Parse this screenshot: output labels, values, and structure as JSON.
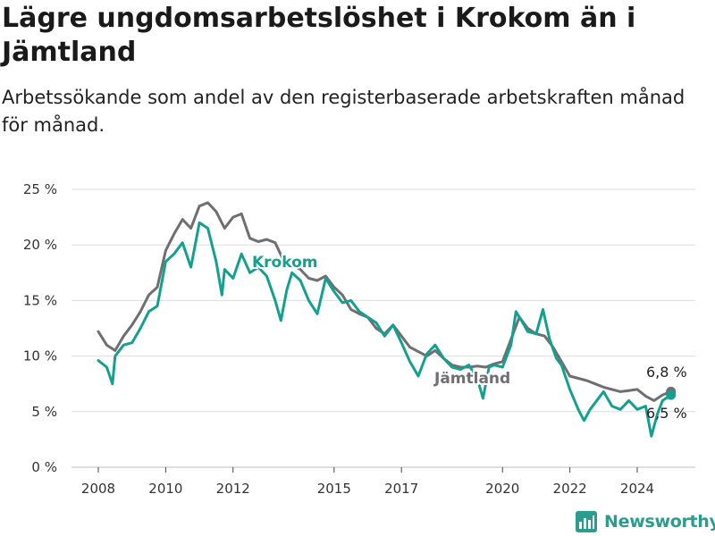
{
  "header": {
    "title": "Lägre ungdomsarbetslöshet i Krokom än i Jämtland",
    "subtitle": "Arbetssökande som andel av den registerbaserade arbetskraften månad för månad."
  },
  "brand": {
    "name": "Newsworthy",
    "color": "#2a9d8f"
  },
  "chart_data": {
    "type": "line",
    "title": "Lägre ungdomsarbetslöshet i Krokom än i Jämtland",
    "subtitle": "Arbetssökande som andel av den registerbaserade arbetskraften månad för månad.",
    "xlabel": "",
    "ylabel": "",
    "y_unit": "%",
    "ylim": [
      0,
      25
    ],
    "y_ticks": [
      0,
      5,
      10,
      15,
      20,
      25
    ],
    "y_tick_labels": [
      "0 %",
      "5 %",
      "10 %",
      "15 %",
      "20 %",
      "25 %"
    ],
    "x_range": [
      2007.0,
      2026.0
    ],
    "x_ticks": [
      2008,
      2010,
      2012,
      2015,
      2017,
      2020,
      2022,
      2024
    ],
    "x_tick_labels": [
      "2008",
      "2010",
      "2012",
      "2015",
      "2017",
      "2020",
      "2022",
      "2024"
    ],
    "grid": "horizontal",
    "legend": "direct labels on lines",
    "series": [
      {
        "name": "Jämtland",
        "color": "#6f6e72",
        "points": [
          [
            2008.0,
            12.2
          ],
          [
            2008.25,
            11.0
          ],
          [
            2008.5,
            10.5
          ],
          [
            2008.75,
            11.8
          ],
          [
            2009.0,
            12.8
          ],
          [
            2009.25,
            14.0
          ],
          [
            2009.5,
            15.5
          ],
          [
            2009.75,
            16.2
          ],
          [
            2010.0,
            19.5
          ],
          [
            2010.25,
            21.0
          ],
          [
            2010.5,
            22.3
          ],
          [
            2010.75,
            21.5
          ],
          [
            2011.0,
            23.5
          ],
          [
            2011.25,
            23.8
          ],
          [
            2011.5,
            23.0
          ],
          [
            2011.75,
            21.5
          ],
          [
            2012.0,
            22.5
          ],
          [
            2012.25,
            22.8
          ],
          [
            2012.5,
            20.6
          ],
          [
            2012.75,
            20.3
          ],
          [
            2013.0,
            20.5
          ],
          [
            2013.25,
            20.2
          ],
          [
            2013.5,
            18.6
          ],
          [
            2013.75,
            18.2
          ],
          [
            2014.0,
            17.8
          ],
          [
            2014.25,
            17.0
          ],
          [
            2014.5,
            16.8
          ],
          [
            2014.75,
            17.2
          ],
          [
            2015.0,
            16.2
          ],
          [
            2015.25,
            15.5
          ],
          [
            2015.5,
            14.2
          ],
          [
            2015.75,
            13.8
          ],
          [
            2016.0,
            13.5
          ],
          [
            2016.25,
            12.5
          ],
          [
            2016.5,
            12.0
          ],
          [
            2016.75,
            12.8
          ],
          [
            2017.0,
            11.8
          ],
          [
            2017.25,
            10.8
          ],
          [
            2017.5,
            10.4
          ],
          [
            2017.75,
            10.0
          ],
          [
            2018.0,
            10.5
          ],
          [
            2018.25,
            9.8
          ],
          [
            2018.5,
            9.2
          ],
          [
            2018.75,
            9.0
          ],
          [
            2019.0,
            9.0
          ],
          [
            2019.25,
            9.1
          ],
          [
            2019.5,
            9.0
          ],
          [
            2019.75,
            9.3
          ],
          [
            2020.0,
            9.5
          ],
          [
            2020.25,
            11.5
          ],
          [
            2020.5,
            13.5
          ],
          [
            2020.75,
            12.5
          ],
          [
            2021.0,
            12.0
          ],
          [
            2021.25,
            11.8
          ],
          [
            2021.5,
            10.8
          ],
          [
            2021.75,
            9.5
          ],
          [
            2022.0,
            8.2
          ],
          [
            2022.25,
            8.0
          ],
          [
            2022.5,
            7.8
          ],
          [
            2022.75,
            7.5
          ],
          [
            2023.0,
            7.2
          ],
          [
            2023.25,
            7.0
          ],
          [
            2023.5,
            6.8
          ],
          [
            2023.75,
            6.9
          ],
          [
            2024.0,
            7.0
          ],
          [
            2024.25,
            6.4
          ],
          [
            2024.5,
            6.0
          ],
          [
            2024.75,
            6.5
          ],
          [
            2025.0,
            6.8
          ]
        ]
      },
      {
        "name": "Krokom",
        "color": "#14a08f",
        "points": [
          [
            2008.0,
            9.6
          ],
          [
            2008.25,
            9.0
          ],
          [
            2008.42,
            7.5
          ],
          [
            2008.5,
            10.0
          ],
          [
            2008.75,
            11.0
          ],
          [
            2009.0,
            11.2
          ],
          [
            2009.25,
            12.5
          ],
          [
            2009.5,
            14.0
          ],
          [
            2009.75,
            14.5
          ],
          [
            2010.0,
            18.5
          ],
          [
            2010.25,
            19.2
          ],
          [
            2010.5,
            20.2
          ],
          [
            2010.75,
            18.0
          ],
          [
            2011.0,
            22.0
          ],
          [
            2011.25,
            21.5
          ],
          [
            2011.5,
            18.5
          ],
          [
            2011.67,
            15.5
          ],
          [
            2011.75,
            17.8
          ],
          [
            2012.0,
            17.0
          ],
          [
            2012.25,
            19.2
          ],
          [
            2012.5,
            17.5
          ],
          [
            2012.75,
            18.0
          ],
          [
            2013.0,
            17.2
          ],
          [
            2013.25,
            15.0
          ],
          [
            2013.42,
            13.2
          ],
          [
            2013.6,
            16.0
          ],
          [
            2013.75,
            17.5
          ],
          [
            2014.0,
            16.8
          ],
          [
            2014.25,
            15.0
          ],
          [
            2014.5,
            13.8
          ],
          [
            2014.75,
            17.0
          ],
          [
            2015.0,
            15.8
          ],
          [
            2015.25,
            14.8
          ],
          [
            2015.5,
            15.0
          ],
          [
            2015.75,
            14.0
          ],
          [
            2016.0,
            13.5
          ],
          [
            2016.25,
            13.0
          ],
          [
            2016.5,
            11.8
          ],
          [
            2016.75,
            12.8
          ],
          [
            2017.0,
            11.2
          ],
          [
            2017.25,
            9.5
          ],
          [
            2017.5,
            8.2
          ],
          [
            2017.75,
            10.2
          ],
          [
            2018.0,
            11.0
          ],
          [
            2018.25,
            9.8
          ],
          [
            2018.5,
            9.0
          ],
          [
            2018.75,
            8.8
          ],
          [
            2019.0,
            9.2
          ],
          [
            2019.25,
            8.0
          ],
          [
            2019.42,
            6.2
          ],
          [
            2019.6,
            9.0
          ],
          [
            2019.75,
            9.2
          ],
          [
            2020.0,
            9.0
          ],
          [
            2020.25,
            11.0
          ],
          [
            2020.4,
            14.0
          ],
          [
            2020.6,
            13.0
          ],
          [
            2020.75,
            12.2
          ],
          [
            2021.0,
            12.0
          ],
          [
            2021.2,
            14.2
          ],
          [
            2021.4,
            11.5
          ],
          [
            2021.6,
            9.8
          ],
          [
            2021.75,
            9.2
          ],
          [
            2022.0,
            7.0
          ],
          [
            2022.25,
            5.2
          ],
          [
            2022.42,
            4.2
          ],
          [
            2022.6,
            5.2
          ],
          [
            2022.75,
            5.8
          ],
          [
            2023.0,
            6.8
          ],
          [
            2023.25,
            5.5
          ],
          [
            2023.5,
            5.2
          ],
          [
            2023.75,
            6.0
          ],
          [
            2024.0,
            5.2
          ],
          [
            2024.25,
            5.5
          ],
          [
            2024.42,
            2.8
          ],
          [
            2024.6,
            4.8
          ],
          [
            2024.75,
            6.0
          ],
          [
            2025.0,
            6.5
          ]
        ]
      }
    ],
    "series_labels": [
      "Krokom",
      "Jämtland"
    ],
    "end_labels": [
      "6,8 %",
      "6,5 %"
    ]
  }
}
